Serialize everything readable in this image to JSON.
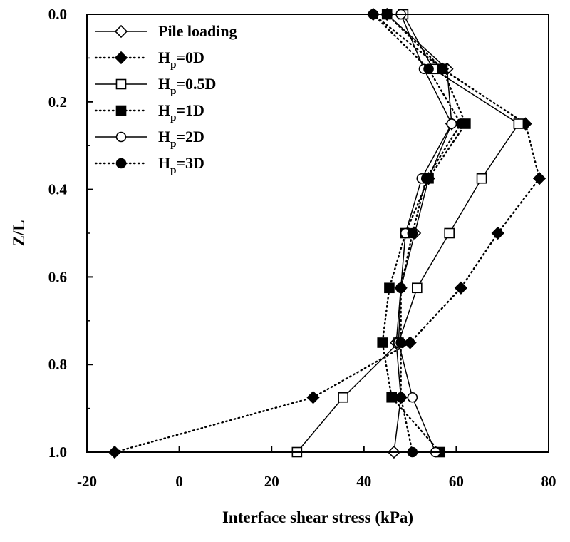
{
  "chart_data": {
    "type": "line",
    "xlabel": "Interface shear stress (kPa)",
    "ylabel": "Z/L",
    "xlim": [
      -20,
      80
    ],
    "ylim": [
      0,
      1
    ],
    "y_inverted": true,
    "x_ticks": [
      "-20",
      "0",
      "20",
      "40",
      "60",
      "80"
    ],
    "y_ticks": [
      "0.0",
      "0.2",
      "0.4",
      "0.6",
      "0.8",
      "1.0"
    ],
    "legend_position": "top-left",
    "y": [
      0,
      0.125,
      0.25,
      0.375,
      0.5,
      0.625,
      0.75,
      0.875,
      1.0
    ],
    "series": [
      {
        "name": "Pile loading",
        "legend": {
          "main": "Pile loading",
          "sub": "",
          "rest": ""
        },
        "marker": "diamond",
        "filled": false,
        "line": "solid",
        "x": [
          45,
          58,
          59,
          54,
          51,
          48,
          47,
          48,
          46.5
        ]
      },
      {
        "name": "Hp=0D",
        "legend": {
          "main": "H",
          "sub": "p",
          "rest": "=0D"
        },
        "marker": "diamond",
        "filled": true,
        "line": "dotted",
        "x": [
          42,
          57,
          75,
          78,
          69,
          61,
          50,
          29,
          -14
        ]
      },
      {
        "name": "Hp=0.5D",
        "legend": {
          "main": "H",
          "sub": "p",
          "rest": "=0.5D"
        },
        "marker": "square",
        "filled": false,
        "line": "solid",
        "x": [
          48.5,
          55,
          73.5,
          65.5,
          58.5,
          51.5,
          47.5,
          35.5,
          25.5
        ]
      },
      {
        "name": "Hp=1D",
        "legend": {
          "main": "H",
          "sub": "p",
          "rest": "=1D"
        },
        "marker": "square",
        "filled": true,
        "line": "dotted",
        "x": [
          45,
          57,
          62,
          54,
          49,
          45.5,
          44,
          46,
          56.5
        ]
      },
      {
        "name": "Hp=2D",
        "legend": {
          "main": "H",
          "sub": "p",
          "rest": "=2D"
        },
        "marker": "circle",
        "filled": false,
        "line": "solid",
        "x": [
          48,
          53,
          59,
          52.5,
          49,
          48,
          47.5,
          50.5,
          55.5
        ]
      },
      {
        "name": "Hp=3D",
        "legend": {
          "main": "H",
          "sub": "p",
          "rest": "=3D"
        },
        "marker": "circle",
        "filled": true,
        "line": "dotted",
        "x": [
          42,
          54,
          61,
          53.5,
          50.5,
          48,
          48,
          48,
          50.5
        ]
      }
    ]
  }
}
